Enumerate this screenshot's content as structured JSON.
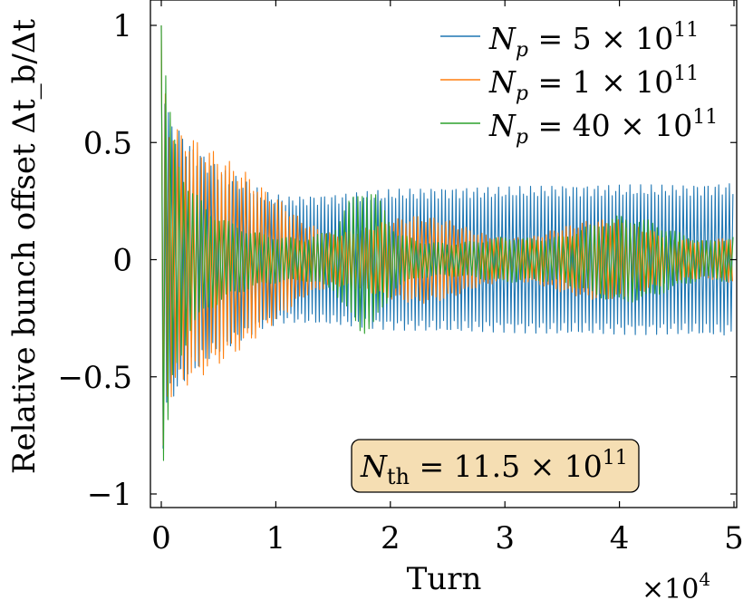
{
  "chart_data": {
    "type": "line",
    "xlabel": "Turn",
    "ylabel": "Relative bunch offset Δt_b/Δt",
    "x_multiplier": "×10",
    "x_multiplier_exp": "4",
    "xlim": [
      0,
      50000
    ],
    "ylim": [
      -1,
      1
    ],
    "xticks": [
      {
        "value": 0,
        "label": "0"
      },
      {
        "value": 10000,
        "label": "1"
      },
      {
        "value": 20000,
        "label": "2"
      },
      {
        "value": 30000,
        "label": "3"
      },
      {
        "value": 40000,
        "label": "4"
      },
      {
        "value": 50000,
        "label": "5"
      }
    ],
    "yticks": [
      {
        "value": 1,
        "label": "1"
      },
      {
        "value": 0.5,
        "label": "0.5"
      },
      {
        "value": 0,
        "label": "0"
      },
      {
        "value": -0.5,
        "label": "−0.5"
      },
      {
        "value": -1,
        "label": "−1"
      }
    ],
    "grid": false,
    "legend_position": "top-right",
    "annotation": {
      "main": "N",
      "sub": "th",
      "rest": " = 11.5 × 10",
      "sup": "11",
      "fill": "#f5deb3"
    },
    "series": [
      {
        "name": "N_p = 5 × 10^11",
        "label": {
          "main": "N",
          "sub": "p",
          "rest": " = 5 × 10",
          "sup": "11"
        },
        "color": "#1f77b4",
        "envelope": {
          "x": [
            0,
            500,
            1000,
            2500,
            5000,
            7500,
            9000,
            11000,
            15000,
            20000,
            25000,
            30000,
            35000,
            40000,
            45000,
            50000
          ],
          "amp": [
            1.0,
            0.65,
            0.6,
            0.5,
            0.4,
            0.33,
            0.29,
            0.27,
            0.28,
            0.3,
            0.31,
            0.31,
            0.32,
            0.32,
            0.32,
            0.33
          ]
        }
      },
      {
        "name": "N_p = 1 × 10^11",
        "label": {
          "main": "N",
          "sub": "p",
          "rest": " = 1 × 10",
          "sup": "11"
        },
        "color": "#ff7f0e",
        "envelope": {
          "x": [
            0,
            500,
            1000,
            2500,
            5000,
            7500,
            9000,
            10000,
            12500,
            15000,
            17500,
            20000,
            22500,
            25000,
            27500,
            30000,
            32500,
            35000,
            37500,
            40000,
            42500,
            45000,
            47500,
            50000
          ],
          "amp": [
            1.0,
            0.65,
            0.57,
            0.53,
            0.45,
            0.37,
            0.3,
            0.27,
            0.16,
            0.11,
            0.13,
            0.17,
            0.19,
            0.17,
            0.12,
            0.09,
            0.1,
            0.14,
            0.17,
            0.17,
            0.13,
            0.09,
            0.08,
            0.1
          ]
        }
      },
      {
        "name": "N_p = 40 × 10^11",
        "label": {
          "main": "N",
          "sub": "p",
          "rest": " = 40 × 10",
          "sup": "11"
        },
        "color": "#2ca02c",
        "envelope": {
          "x": [
            0,
            300,
            800,
            1500,
            2500,
            4000,
            6000,
            8000,
            10000,
            12500,
            15000,
            16500,
            17500,
            18500,
            19500,
            20500,
            22500,
            25000,
            27500,
            30000,
            32500,
            35000,
            37500,
            40000,
            42500,
            45000,
            47500,
            50000
          ],
          "amp": [
            1.0,
            0.85,
            0.62,
            0.45,
            0.32,
            0.22,
            0.16,
            0.12,
            0.1,
            0.09,
            0.13,
            0.26,
            0.32,
            0.3,
            0.22,
            0.12,
            0.08,
            0.07,
            0.08,
            0.1,
            0.09,
            0.1,
            0.15,
            0.19,
            0.17,
            0.12,
            0.08,
            0.1
          ]
        }
      }
    ]
  }
}
